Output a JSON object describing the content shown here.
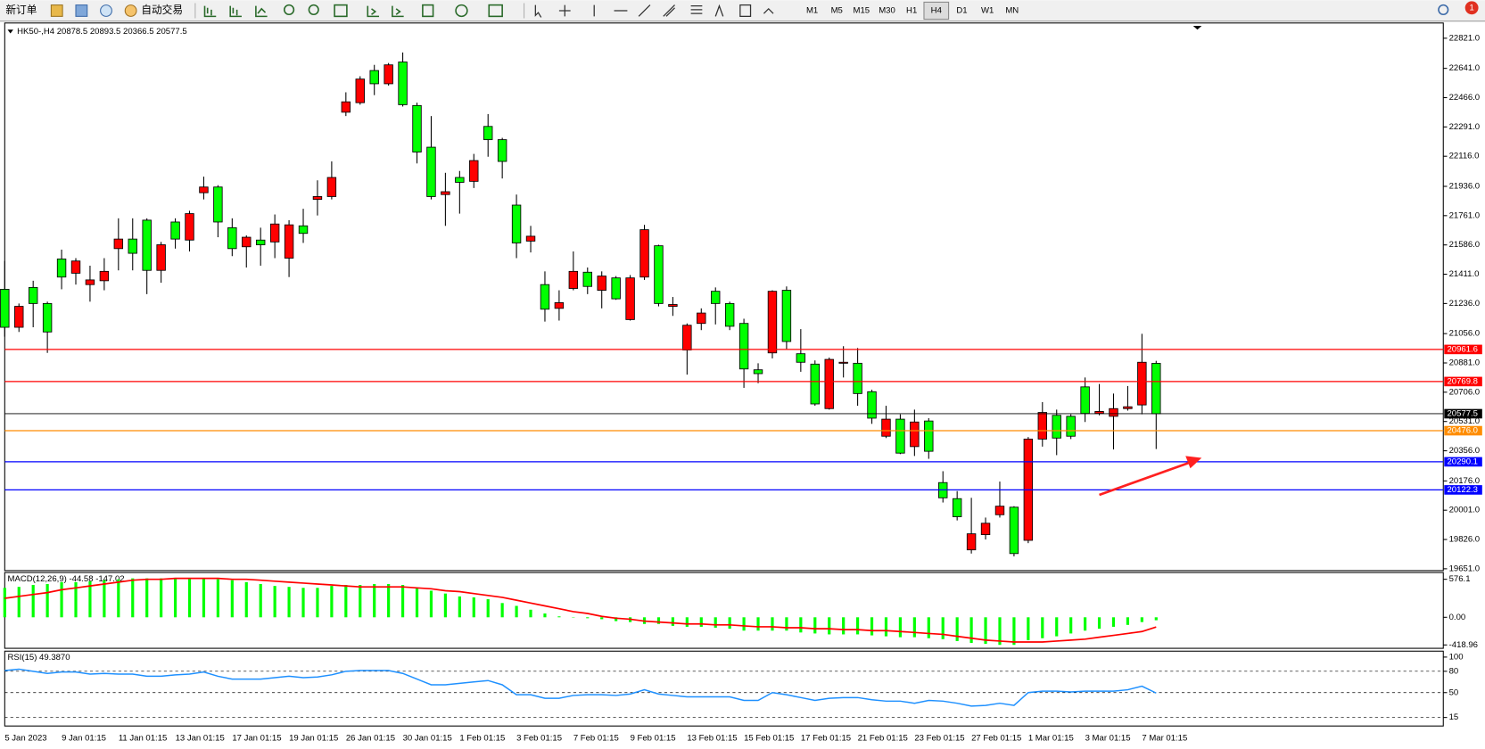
{
  "toolbar": {
    "new_order": "新订单",
    "auto_trading": "自动交易",
    "timeframes": [
      "M1",
      "M5",
      "M15",
      "M30",
      "H1",
      "H4",
      "D1",
      "W1",
      "MN"
    ],
    "notifications": "1"
  },
  "chart_data": [
    {
      "type": "candlestick",
      "title": "HK50-,H4  20878.5 20893.5 20366.5 20577.5",
      "categories": [
        "5 Jan 2023",
        null,
        null,
        null,
        "9 Jan 01:15",
        null,
        null,
        null,
        "11 Jan 01:15",
        null,
        null,
        null,
        "13 Jan 01:15",
        null,
        null,
        null,
        "17 Jan 01:15",
        null,
        null,
        null,
        "19 Jan 01:15",
        null,
        null,
        null,
        "26 Jan 01:15",
        null,
        null,
        null,
        "30 Jan 01:15",
        null,
        null,
        null,
        "1 Feb 01:15",
        null,
        null,
        null,
        "3 Feb 01:15",
        null,
        null,
        null,
        "7 Feb 01:15",
        null,
        null,
        null,
        "9 Feb 01:15",
        null,
        null,
        null,
        "13 Feb 01:15",
        null,
        null,
        null,
        "15 Feb 01:15",
        null,
        null,
        null,
        "17 Feb 01:15",
        null,
        null,
        null,
        "21 Feb 01:15",
        null,
        null,
        null,
        "23 Feb 01:15",
        null,
        null,
        null,
        "27 Feb 01:15",
        null,
        null,
        null,
        "1 Mar 01:15",
        null,
        null,
        null,
        "3 Mar 01:15",
        null,
        null,
        null,
        "7 Mar 01:15",
        null
      ],
      "open": [
        21321,
        21094,
        21332,
        21236,
        21502,
        21417,
        21349,
        21372,
        21564,
        21621,
        21734,
        21434,
        21723,
        21615,
        21898,
        21932,
        21689,
        21575,
        21615,
        21604,
        21507,
        21700,
        21858,
        21875,
        22379,
        22436,
        22628,
        22549,
        22679,
        22419,
        22170,
        21887,
        21989,
        21966,
        22294,
        22215,
        21824,
        21609,
        21349,
        21207,
        21326,
        21423,
        21315,
        21389,
        21140,
        21394,
        21581,
        21219,
        20958,
        21117,
        21309,
        21236,
        21117,
        20840,
        20941,
        21315,
        20936,
        20874,
        20608,
        20879,
        20879,
        20709,
        20443,
        20545,
        20381,
        20534,
        20166,
        20070,
        19764,
        19855,
        19974,
        20019,
        19821,
        20426,
        20568,
        20562,
        20738,
        20579,
        20562,
        20608,
        20630,
        20878.5
      ],
      "high": [
        21490,
        21236,
        21372,
        21247,
        21558,
        21507,
        21462,
        21507,
        21745,
        21745,
        21745,
        21604,
        21745,
        21790,
        21994,
        21943,
        21745,
        21643,
        21689,
        21768,
        21734,
        21802,
        21972,
        22085,
        22498,
        22594,
        22662,
        22673,
        22736,
        22436,
        22356,
        22017,
        22028,
        22130,
        22368,
        22226,
        21887,
        21700,
        21428,
        21315,
        21547,
        21451,
        21428,
        21400,
        21406,
        21706,
        21587,
        21275,
        21117,
        21207,
        21332,
        21247,
        21145,
        20879,
        21315,
        21338,
        21083,
        20896,
        20913,
        20981,
        20970,
        20721,
        20625,
        20574,
        20602,
        20551,
        20234,
        20115,
        20075,
        19957,
        20172,
        20025,
        20438,
        20647,
        20602,
        20574,
        20794,
        20755,
        20698,
        20743,
        21055,
        20893.5
      ],
      "low": [
        21038,
        21066,
        21094,
        20941,
        21321,
        21349,
        21247,
        21315,
        21434,
        21434,
        21292,
        21360,
        21564,
        21547,
        21858,
        21632,
        21519,
        21451,
        21462,
        21507,
        21394,
        21598,
        21762,
        21858,
        22356,
        22424,
        22481,
        22538,
        22413,
        22073,
        21858,
        21700,
        21773,
        21926,
        22113,
        21983,
        21507,
        21541,
        21128,
        21134,
        21315,
        21292,
        21207,
        21258,
        21134,
        21377,
        21219,
        21162,
        20811,
        21077,
        21111,
        21077,
        20732,
        20760,
        20908,
        20964,
        20828,
        20625,
        20602,
        20794,
        20625,
        20517,
        20432,
        20336,
        20325,
        20308,
        20047,
        19940,
        19742,
        19826,
        19957,
        19725,
        19804,
        20381,
        20330,
        20426,
        20528,
        20568,
        20364,
        20596,
        20574,
        20366.5
      ],
      "close": [
        21094,
        21219,
        21236,
        21066,
        21394,
        21490,
        21377,
        21428,
        21621,
        21536,
        21434,
        21587,
        21621,
        21773,
        21932,
        21723,
        21564,
        21632,
        21587,
        21711,
        21706,
        21655,
        21875,
        21989,
        22441,
        22577,
        22549,
        22662,
        22424,
        22141,
        21875,
        21904,
        21960,
        22090,
        22215,
        22085,
        21598,
        21638,
        21202,
        21241,
        21428,
        21338,
        21400,
        21264,
        21389,
        21677,
        21236,
        21230,
        21106,
        21179,
        21236,
        21100,
        20845,
        20817,
        21309,
        21009,
        20885,
        20636,
        20902,
        20885,
        20698,
        20551,
        20545,
        20342,
        20528,
        20353,
        20075,
        19962,
        19860,
        19923,
        20025,
        19742,
        20426,
        20585,
        20432,
        20443,
        20579,
        20591,
        20608,
        20619,
        20885,
        20577.5
      ],
      "up_color": "#ff0000",
      "down_color": "#00ff00",
      "ylim": [
        19640,
        22912
      ],
      "yticks": [
        {
          "value": 22821,
          "label": "22821.0"
        },
        {
          "value": 22641,
          "label": "22641.0"
        },
        {
          "value": 22466,
          "label": "22466.0"
        },
        {
          "value": 22291,
          "label": "22291.0"
        },
        {
          "value": 22116,
          "label": "22116.0"
        },
        {
          "value": 21936,
          "label": "21936.0"
        },
        {
          "value": 21761,
          "label": "21761.0"
        },
        {
          "value": 21586,
          "label": "21586.0"
        },
        {
          "value": 21411,
          "label": "21411.0"
        },
        {
          "value": 21236,
          "label": "21236.0"
        },
        {
          "value": 21056,
          "label": "21056.0"
        },
        {
          "value": 20881,
          "label": "20881.0"
        },
        {
          "value": 20706,
          "label": "20706.0"
        },
        {
          "value": 20531,
          "label": "20531.0"
        },
        {
          "value": 20356,
          "label": "20356.0"
        },
        {
          "value": 20176,
          "label": "20176.0"
        },
        {
          "value": 20001,
          "label": "20001.0"
        },
        {
          "value": 19826,
          "label": "19826.0"
        },
        {
          "value": 19651,
          "label": "19651.0"
        }
      ],
      "levels": [
        {
          "price": 20961.6,
          "color": "#ff0000"
        },
        {
          "price": 20769.8,
          "color": "#ff0000"
        },
        {
          "price": 20577.5,
          "color": "#000000"
        },
        {
          "price": {
            "value": 20476,
            "label": "20476.0"
          },
          "color": "#ff8c00"
        },
        {
          "price": 20290.1,
          "color": "#0000ff"
        },
        {
          "price": 20122.3,
          "color": "#0000ff"
        }
      ]
    },
    {
      "type": "macd",
      "title": "MACD(12,26,9) -44.58 -147.02",
      "histogram": {
        "color": "#00ff00",
        "values": [
          446,
          461,
          490,
          504,
          533,
          533,
          547,
          562,
          576,
          590,
          590,
          590,
          590,
          590,
          590,
          576,
          562,
          533,
          504,
          475,
          461,
          446,
          446,
          475,
          490,
          490,
          504,
          504,
          490,
          446,
          403,
          360,
          317,
          302,
          274,
          216,
          173,
          115,
          58,
          14,
          -5,
          -14,
          -29,
          -58,
          -72,
          -101,
          -101,
          -130,
          -144,
          -144,
          -158,
          -173,
          -202,
          -202,
          -202,
          -202,
          -230,
          -245,
          -259,
          -259,
          -259,
          -274,
          -288,
          -302,
          -302,
          -317,
          -331,
          -360,
          -389,
          -403,
          -418,
          -418,
          -346,
          -317,
          -288,
          -245,
          -202,
          -173,
          -144,
          -115,
          -72,
          -44.58
        ]
      },
      "signal": {
        "color": "#ff0000",
        "values": [
          288,
          317,
          346,
          374,
          418,
          446,
          475,
          504,
          533,
          562,
          576,
          576,
          590,
          590,
          590,
          590,
          576,
          576,
          562,
          547,
          533,
          518,
          504,
          490,
          475,
          461,
          461,
          461,
          461,
          446,
          432,
          403,
          389,
          360,
          331,
          302,
          259,
          216,
          173,
          130,
          86,
          58,
          14,
          -14,
          -29,
          -58,
          -72,
          -86,
          -101,
          -101,
          -115,
          -115,
          -130,
          -144,
          -144,
          -158,
          -158,
          -173,
          -173,
          -187,
          -187,
          -202,
          -202,
          -216,
          -230,
          -245,
          -259,
          -288,
          -317,
          -346,
          -360,
          -374,
          -374,
          -374,
          -360,
          -346,
          -331,
          -302,
          -274,
          -245,
          -216,
          -147.02
        ]
      },
      "ylim": [
        -470,
        650
      ],
      "yticks": [
        576.1,
        {
          "value": 0,
          "label": "0.00"
        },
        -418.96
      ]
    },
    {
      "type": "line",
      "title": "RSI(15) 49.3870",
      "color": "#1e90ff",
      "values": [
        81,
        83,
        80,
        77,
        79,
        79,
        76,
        77,
        76,
        76,
        73,
        73,
        75,
        76,
        79,
        73,
        69,
        69,
        69,
        71,
        73,
        71,
        72,
        75,
        80,
        81,
        81,
        81,
        77,
        69,
        61,
        61,
        63,
        65,
        67,
        61,
        47,
        47,
        42,
        42,
        46,
        47,
        47,
        46,
        48,
        54,
        48,
        46,
        44,
        44,
        44,
        44,
        39,
        39,
        50,
        47,
        43,
        39,
        42,
        43,
        43,
        40,
        38,
        38,
        35,
        39,
        38,
        35,
        31,
        32,
        35,
        32,
        50,
        52,
        52,
        51,
        52,
        52,
        52,
        54,
        59,
        49.387
      ],
      "ylim": [
        3,
        107
      ],
      "yticks": [
        100,
        80,
        50,
        15
      ],
      "dashed_levels": [
        80,
        50,
        15
      ]
    }
  ]
}
